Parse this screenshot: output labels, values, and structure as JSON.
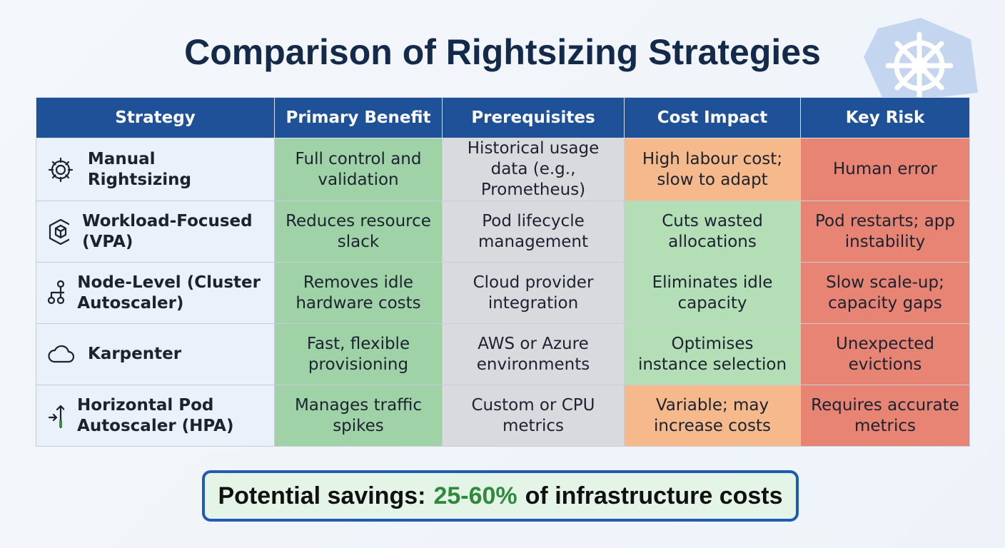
{
  "title": "Comparison of Rightsizing Strategies",
  "table": {
    "header": [
      "Strategy",
      "Primary Benefit",
      "Prerequisites",
      "Cost Impact",
      "Key Risk"
    ],
    "rows": [
      [
        "Manual Rightsizing",
        "Full control and validation",
        "Historical usage data (e.g., Prometheus)",
        "High labour cost; slow to adapt",
        "Human error"
      ],
      [
        "Workload-Focused (VPA)",
        "Reduces resource slack",
        "Pod lifecycle management",
        "Cuts wasted allocations",
        "Pod restarts; app instability"
      ],
      [
        "Node-Level (Cluster Autoscaler)",
        "Removes idle hardware costs",
        "Cloud provider integration",
        "Eliminates idle capacity",
        "Slow scale-up; capacity gaps"
      ],
      [
        "Karpenter",
        "Fast, flexible provisioning",
        "AWS or Azure environments",
        "Optimises instance selection",
        "Unexpected evictions"
      ],
      [
        "Horizontal Pod Autoscaler (HPA)",
        "Manages traffic spikes",
        "Custom or CPU metrics",
        "Variable; may increase costs",
        "Requires accurate metrics"
      ]
    ]
  },
  "footer": {
    "lead": "Potential savings:",
    "highlight": "25-60%",
    "tail": "of infrastructure costs"
  }
}
